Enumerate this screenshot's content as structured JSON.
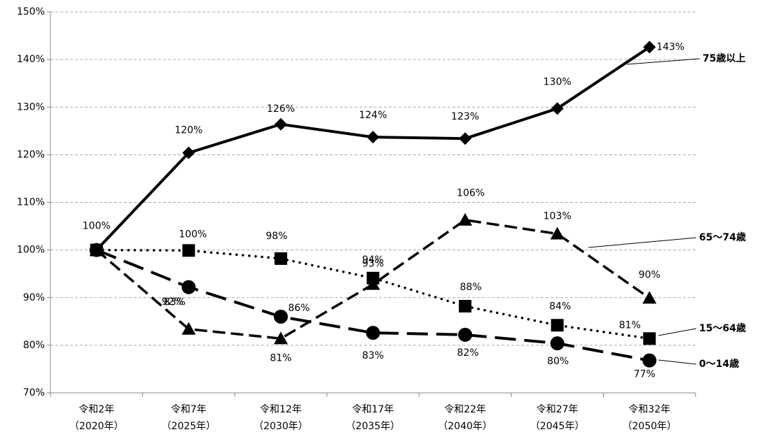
{
  "chart_data": {
    "type": "line",
    "categories": [
      "令和2年\n（2020年）",
      "令和7年\n（2025年）",
      "令和12年\n（2030年）",
      "令和17年\n（2035年）",
      "令和22年\n（2040年）",
      "令和27年\n（2045年）",
      "令和32年\n（2050年）"
    ],
    "series": [
      {
        "name": "75歳以上",
        "color": "#000000",
        "line_style": "solid",
        "marker": "diamond",
        "values": [
          100,
          120.4,
          126.4,
          123.7,
          123.4,
          129.7,
          142.6
        ],
        "value_labels": [
          "100%",
          "120%",
          "126%",
          "124%",
          "123%",
          "130%",
          "143%"
        ]
      },
      {
        "name": "65～74歳",
        "color": "#000000",
        "line_style": "dashed",
        "marker": "triangle",
        "values": [
          100,
          83.4,
          81.4,
          92.8,
          106.3,
          103.4,
          89.9
        ],
        "value_labels": [
          null,
          "83%",
          "81%",
          "93%",
          "106%",
          "103%",
          "90%"
        ]
      },
      {
        "name": "15～64歳",
        "color": "#000000",
        "line_style": "dotted",
        "marker": "square",
        "values": [
          100,
          99.9,
          98.2,
          94.1,
          88.2,
          84.2,
          81.4
        ],
        "value_labels": [
          null,
          "100%",
          "98%",
          "94%",
          "88%",
          "84%",
          "81%"
        ]
      },
      {
        "name": "0～14歳",
        "color": "#000000",
        "line_style": "long-dashed",
        "marker": "circle",
        "values": [
          100,
          92.2,
          86.0,
          82.6,
          82.2,
          80.4,
          76.8
        ],
        "value_labels": [
          null,
          "92%",
          "86%",
          "83%",
          "82%",
          "80%",
          "77%"
        ]
      }
    ],
    "ylim": [
      70,
      150
    ],
    "yticks": [
      {
        "value": 70,
        "label": "70%"
      },
      {
        "value": 80,
        "label": "80%"
      },
      {
        "value": 90,
        "label": "90%"
      },
      {
        "value": 100,
        "label": "100%"
      },
      {
        "value": 110,
        "label": "110%"
      },
      {
        "value": 120,
        "label": "120%"
      },
      {
        "value": 130,
        "label": "130%"
      },
      {
        "value": 140,
        "label": "140%"
      },
      {
        "value": 150,
        "label": "150%"
      }
    ],
    "grid": true
  }
}
